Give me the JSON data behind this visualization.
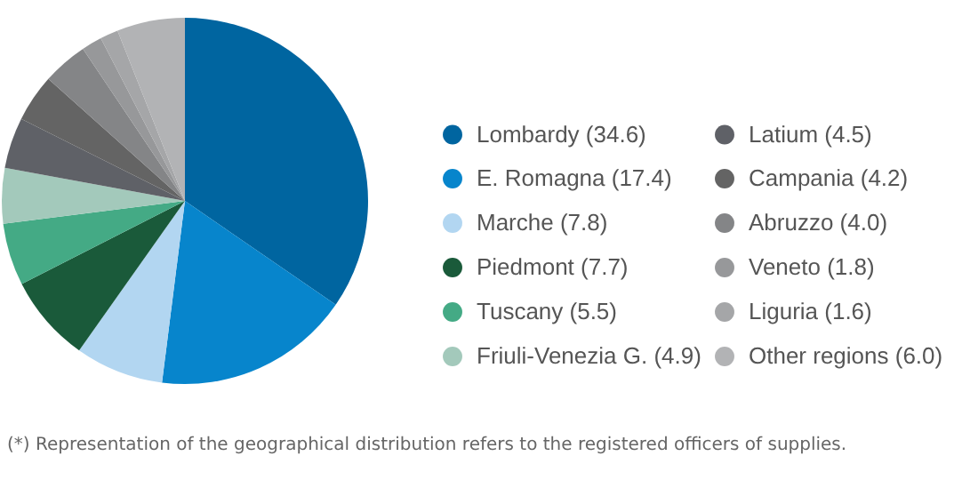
{
  "chart_data": {
    "type": "pie",
    "categories": [
      "Lombardy (34.6)",
      "E. Romagna (17.4)",
      "Marche (7.8)",
      "Piedmont (7.7)",
      "Tuscany (5.5)",
      "Friuli-Venezia G. (4.9)",
      "Latium (4.5)",
      "Campania (4.2)",
      "Abruzzo (4.0)",
      "Veneto (1.8)",
      "Liguria (1.6)",
      "Other regions (6.0)"
    ],
    "values": [
      34.6,
      17.4,
      7.8,
      7.7,
      5.5,
      4.9,
      4.5,
      4.2,
      4.0,
      1.8,
      1.6,
      6.0
    ],
    "colors": [
      "#0065a0",
      "#0785cc",
      "#b2d6f1",
      "#1a5a3a",
      "#44aa85",
      "#a3c9bb",
      "#5f6167",
      "#646464",
      "#848587",
      "#97989a",
      "#a5a6a8",
      "#b2b3b5"
    ],
    "legend": "right",
    "annotations": [
      "(*) Representation of the geographical distribution refers to the registered officers of supplies."
    ]
  }
}
